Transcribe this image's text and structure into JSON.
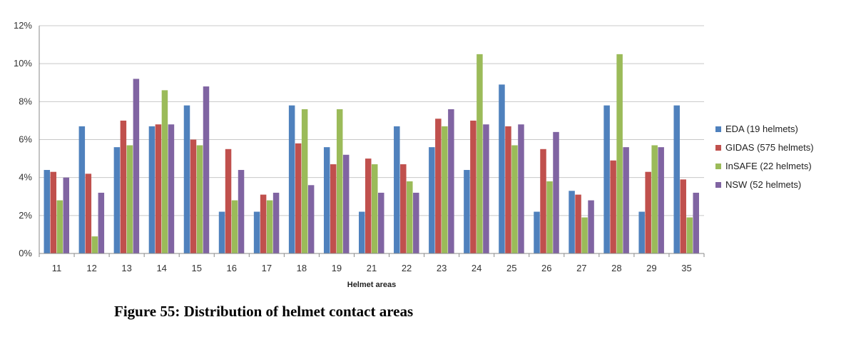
{
  "caption": "Figure 55: Distribution of helmet contact areas",
  "chart_data": {
    "type": "bar",
    "title": "",
    "xlabel": "Helmet areas",
    "ylabel": "",
    "ylim": [
      0,
      12
    ],
    "y_ticks": [
      "0%",
      "2%",
      "4%",
      "6%",
      "8%",
      "10%",
      "12%"
    ],
    "y_tick_values": [
      0,
      2,
      4,
      6,
      8,
      10,
      12
    ],
    "grid": "horizontal",
    "legend_position": "right",
    "categories": [
      "11",
      "12",
      "13",
      "14",
      "15",
      "16",
      "17",
      "18",
      "19",
      "21",
      "22",
      "23",
      "24",
      "25",
      "26",
      "27",
      "28",
      "29",
      "35"
    ],
    "series": [
      {
        "name": "EDA (19 helmets)",
        "color": "#4f81bd",
        "values": [
          4.4,
          6.7,
          5.6,
          6.7,
          7.8,
          2.2,
          2.2,
          7.8,
          5.6,
          2.2,
          6.7,
          5.6,
          4.4,
          8.9,
          2.2,
          3.3,
          7.8,
          2.2,
          7.8
        ]
      },
      {
        "name": "GIDAS (575 helmets)",
        "color": "#c0504d",
        "values": [
          4.3,
          4.2,
          7.0,
          6.8,
          6.0,
          5.5,
          3.1,
          5.8,
          4.7,
          5.0,
          4.7,
          7.1,
          7.0,
          6.7,
          5.5,
          3.1,
          4.9,
          4.3,
          3.9
        ]
      },
      {
        "name": "InSAFE (22 helmets)",
        "color": "#9bbb59",
        "values": [
          2.8,
          0.9,
          5.7,
          8.6,
          5.7,
          2.8,
          2.8,
          7.6,
          7.6,
          4.7,
          3.8,
          6.7,
          10.5,
          5.7,
          3.8,
          1.9,
          10.5,
          5.7,
          1.9
        ]
      },
      {
        "name": "NSW (52 helmets)",
        "color": "#8064a2",
        "values": [
          4.0,
          3.2,
          9.2,
          6.8,
          8.8,
          4.4,
          3.2,
          3.6,
          5.2,
          3.2,
          3.2,
          7.6,
          6.8,
          6.8,
          6.4,
          2.8,
          5.6,
          5.6,
          3.2
        ]
      }
    ]
  }
}
